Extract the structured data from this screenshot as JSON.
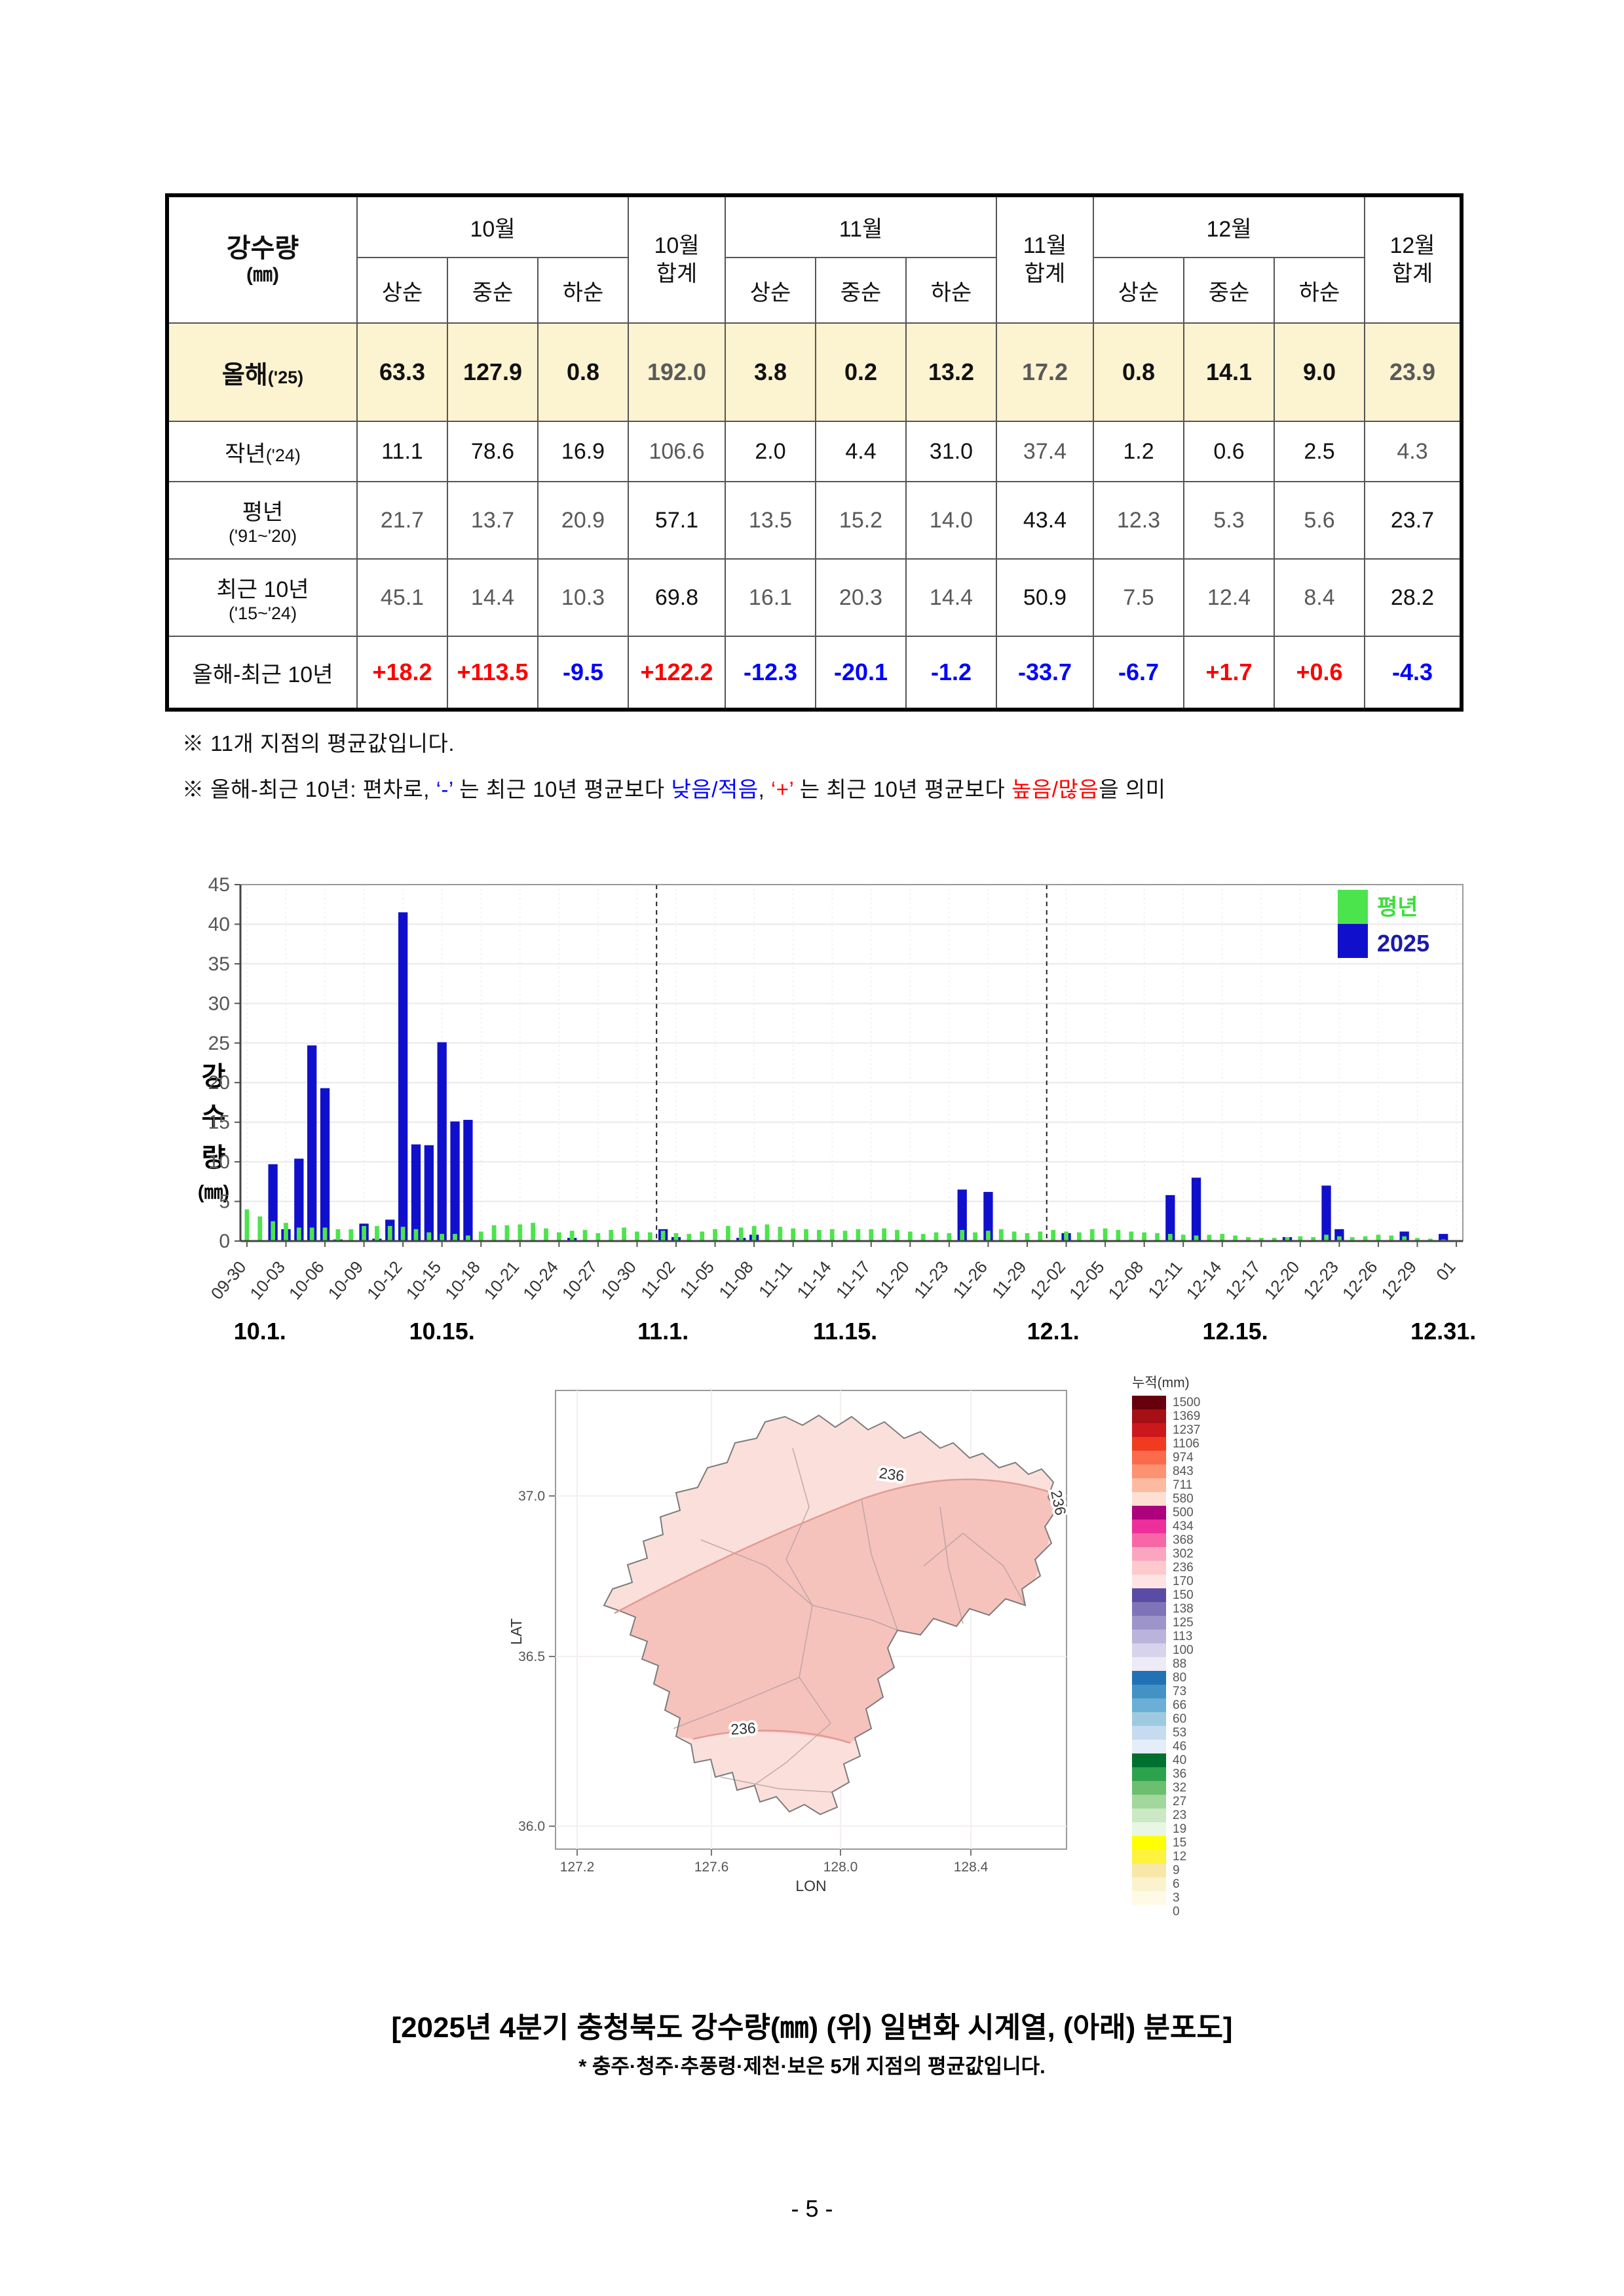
{
  "page": {
    "number": "- 5 -"
  },
  "table": {
    "title": "강수량",
    "unit": "(㎜)",
    "subcols": [
      "상순",
      "중순",
      "하순"
    ],
    "groups": [
      {
        "month": "10월",
        "sum_line1": "10월",
        "sum_line2": "합계"
      },
      {
        "month": "11월",
        "sum_line1": "11월",
        "sum_line2": "합계"
      },
      {
        "month": "12월",
        "sum_line1": "12월",
        "sum_line2": "합계"
      }
    ],
    "rows": [
      {
        "label": "올해",
        "label_sub": "('25)",
        "inline_sub": true,
        "bold_label": true,
        "bold_values": true,
        "highlight": true,
        "values": [
          "63.3",
          "127.9",
          "0.8",
          "192.0",
          "3.8",
          "0.2",
          "13.2",
          "17.2",
          "0.8",
          "14.1",
          "9.0",
          "23.9"
        ],
        "colors": [
          "k",
          "k",
          "k",
          "g",
          "k",
          "k",
          "k",
          "g",
          "k",
          "k",
          "k",
          "g"
        ]
      },
      {
        "label": "작년",
        "label_sub": "('24)",
        "inline_sub": true,
        "bold_label": false,
        "bold_values": false,
        "highlight": false,
        "values": [
          "11.1",
          "78.6",
          "16.9",
          "106.6",
          "2.0",
          "4.4",
          "31.0",
          "37.4",
          "1.2",
          "0.6",
          "2.5",
          "4.3"
        ],
        "colors": [
          "k",
          "k",
          "k",
          "g",
          "k",
          "k",
          "k",
          "g",
          "k",
          "k",
          "k",
          "g"
        ]
      },
      {
        "label": "평년",
        "label_sub": "('91~'20)",
        "inline_sub": false,
        "bold_label": false,
        "bold_values": false,
        "highlight": false,
        "values": [
          "21.7",
          "13.7",
          "20.9",
          "57.1",
          "13.5",
          "15.2",
          "14.0",
          "43.4",
          "12.3",
          "5.3",
          "5.6",
          "23.7"
        ],
        "colors": [
          "g",
          "g",
          "g",
          "k",
          "g",
          "g",
          "g",
          "k",
          "g",
          "g",
          "g",
          "k"
        ]
      },
      {
        "label": "최근 10년",
        "label_sub": "('15~'24)",
        "inline_sub": false,
        "bold_label": false,
        "bold_values": false,
        "highlight": false,
        "values": [
          "45.1",
          "14.4",
          "10.3",
          "69.8",
          "16.1",
          "20.3",
          "14.4",
          "50.9",
          "7.5",
          "12.4",
          "8.4",
          "28.2"
        ],
        "colors": [
          "g",
          "g",
          "g",
          "k",
          "g",
          "g",
          "g",
          "k",
          "g",
          "g",
          "g",
          "k"
        ]
      },
      {
        "label": "올해-최근 10년",
        "label_sub": "",
        "inline_sub": true,
        "bold_label": false,
        "bold_values": true,
        "highlight": false,
        "values": [
          "+18.2",
          "+113.5",
          "-9.5",
          "+122.2",
          "-12.3",
          "-20.1",
          "-1.2",
          "-33.7",
          "-6.7",
          "+1.7",
          "+0.6",
          "-4.3"
        ],
        "colors": [
          "r",
          "r",
          "b",
          "r",
          "b",
          "b",
          "b",
          "b",
          "b",
          "r",
          "r",
          "b"
        ]
      }
    ]
  },
  "notes": [
    {
      "parts": [
        {
          "t": "※  11개 지점의 평균값입니다.",
          "c": "k"
        }
      ]
    },
    {
      "parts": [
        {
          "t": "※  올해-최근 10년: 편차로,  ",
          "c": "k"
        },
        {
          "t": "‘-’",
          "c": "b"
        },
        {
          "t": " 는 최근 10년 평균보다 ",
          "c": "k"
        },
        {
          "t": "낮음/적음",
          "c": "b"
        },
        {
          "t": ",  ",
          "c": "k"
        },
        {
          "t": "‘+’",
          "c": "r"
        },
        {
          "t": " 는 최근 10년 평균보다 ",
          "c": "k"
        },
        {
          "t": "높음/많음",
          "c": "r"
        },
        {
          "t": "을 의미",
          "c": "k"
        }
      ]
    }
  ],
  "chart_data": {
    "type": "bar",
    "title": "",
    "ylabel_chars": [
      "강",
      "수",
      "량"
    ],
    "ylabel_unit": "(㎜)",
    "ylim": [
      0,
      45
    ],
    "ytick_step": 5,
    "grid": true,
    "legend_position": "top-right",
    "x_tick_every": 3,
    "month_boundaries": [
      "11-01",
      "12-01"
    ],
    "month_labels": [
      {
        "text": "10.1.",
        "i": 1
      },
      {
        "text": "10.15.",
        "i": 15
      },
      {
        "text": "11.1.",
        "i": 32
      },
      {
        "text": "11.15.",
        "i": 46
      },
      {
        "text": "12.1.",
        "i": 62
      },
      {
        "text": "12.15.",
        "i": 76
      },
      {
        "text": "12.31.",
        "i": 92
      }
    ],
    "x": [
      "09-30",
      "10-01",
      "10-02",
      "10-03",
      "10-04",
      "10-05",
      "10-06",
      "10-07",
      "10-08",
      "10-09",
      "10-10",
      "10-11",
      "10-12",
      "10-13",
      "10-14",
      "10-15",
      "10-16",
      "10-17",
      "10-18",
      "10-19",
      "10-20",
      "10-21",
      "10-22",
      "10-23",
      "10-24",
      "10-25",
      "10-26",
      "10-27",
      "10-28",
      "10-29",
      "10-30",
      "10-31",
      "11-01",
      "11-02",
      "11-03",
      "11-04",
      "11-05",
      "11-06",
      "11-07",
      "11-08",
      "11-09",
      "11-10",
      "11-11",
      "11-12",
      "11-13",
      "11-14",
      "11-15",
      "11-16",
      "11-17",
      "11-18",
      "11-19",
      "11-20",
      "11-21",
      "11-22",
      "11-23",
      "11-24",
      "11-25",
      "11-26",
      "11-27",
      "11-28",
      "11-29",
      "11-30",
      "12-01",
      "12-02",
      "12-03",
      "12-04",
      "12-05",
      "12-06",
      "12-07",
      "12-08",
      "12-09",
      "12-10",
      "12-11",
      "12-12",
      "12-13",
      "12-14",
      "12-15",
      "12-16",
      "12-17",
      "12-18",
      "12-19",
      "12-20",
      "12-21",
      "12-22",
      "12-23",
      "12-24",
      "12-25",
      "12-26",
      "12-27",
      "12-28",
      "12-29",
      "12-30",
      "12-31",
      "01"
    ],
    "series": [
      {
        "name": "평년",
        "color": "#4ce44c",
        "label_color": "#3ddd3d",
        "values": [
          4.0,
          3.1,
          2.5,
          2.3,
          1.7,
          1.7,
          1.7,
          1.5,
          1.5,
          1.9,
          1.9,
          1.9,
          1.8,
          1.5,
          1.1,
          0.9,
          0.9,
          0.7,
          1.2,
          2.0,
          2.0,
          2.1,
          2.3,
          1.6,
          1.1,
          1.3,
          1.4,
          1.0,
          1.4,
          1.7,
          1.2,
          1.1,
          1.3,
          1.0,
          0.9,
          1.2,
          1.5,
          1.9,
          1.7,
          1.9,
          2.1,
          1.8,
          1.6,
          1.5,
          1.4,
          1.5,
          1.3,
          1.5,
          1.5,
          1.6,
          1.4,
          1.2,
          0.9,
          1.1,
          1.0,
          1.4,
          1.1,
          1.3,
          1.5,
          1.2,
          1.0,
          1.2,
          1.4,
          1.2,
          1.1,
          1.5,
          1.6,
          1.4,
          1.2,
          1.1,
          1.0,
          0.9,
          0.8,
          0.7,
          0.8,
          0.9,
          0.7,
          0.5,
          0.4,
          0.4,
          0.5,
          0.6,
          0.5,
          0.8,
          0.6,
          0.5,
          0.6,
          0.8,
          0.7,
          0.6,
          0.4,
          0.3,
          0.2,
          0.1
        ]
      },
      {
        "name": "2025",
        "color": "#1010cc",
        "label_color": "#1a1aad",
        "values": [
          0,
          0,
          9.7,
          1.5,
          10.4,
          24.7,
          19.3,
          0.2,
          0,
          2.2,
          0.3,
          2.7,
          41.5,
          12.2,
          12.1,
          25.1,
          15.1,
          15.3,
          0,
          0,
          0,
          0,
          0,
          0,
          0,
          0.4,
          0,
          0,
          0,
          0,
          0,
          0,
          1.5,
          0.5,
          0,
          0,
          0,
          0,
          0.4,
          0.8,
          0,
          0,
          0,
          0,
          0,
          0,
          0.1,
          0,
          0,
          0,
          0,
          0,
          0,
          0,
          0,
          6.5,
          0,
          6.2,
          0,
          0,
          0,
          0,
          0,
          1.0,
          0,
          0,
          0,
          0,
          0,
          0,
          0,
          5.8,
          0,
          8.0,
          0,
          0,
          0,
          0,
          0,
          0,
          0.5,
          0,
          0,
          7.0,
          1.5,
          0,
          0,
          0,
          0,
          1.2,
          0,
          0,
          0.9,
          0
        ]
      }
    ]
  },
  "map": {
    "legend_title": "누적(mm)",
    "lon_label": "LON",
    "lat_label": "LAT",
    "lon_ticks": [
      "127.2",
      "127.6",
      "128.0",
      "128.4"
    ],
    "lat_ticks": [
      "37.0",
      "36.5",
      "36.0"
    ],
    "contour_labels": [
      "236",
      "236",
      "236"
    ],
    "legend": [
      {
        "v": "1500",
        "c": "#67000d"
      },
      {
        "v": "1369",
        "c": "#a50f15"
      },
      {
        "v": "1237",
        "c": "#cb181d"
      },
      {
        "v": "1106",
        "c": "#f03b20"
      },
      {
        "v": "974",
        "c": "#fb6a4a"
      },
      {
        "v": "843",
        "c": "#fc9272"
      },
      {
        "v": "711",
        "c": "#fcbba1"
      },
      {
        "v": "580",
        "c": "#fee0d2"
      },
      {
        "v": "500",
        "c": "#ae017e"
      },
      {
        "v": "434",
        "c": "#ec2f9a"
      },
      {
        "v": "368",
        "c": "#f767a6"
      },
      {
        "v": "302",
        "c": "#fba6c0"
      },
      {
        "v": "236",
        "c": "#fcc9cd"
      },
      {
        "v": "170",
        "c": "#fde3e3"
      },
      {
        "v": "150",
        "c": "#5a4ba5"
      },
      {
        "v": "138",
        "c": "#7f74b8"
      },
      {
        "v": "125",
        "c": "#9d94cb"
      },
      {
        "v": "113",
        "c": "#bab4da"
      },
      {
        "v": "100",
        "c": "#d6d3ea"
      },
      {
        "v": "88",
        "c": "#edebf6"
      },
      {
        "v": "80",
        "c": "#2171b5"
      },
      {
        "v": "73",
        "c": "#4292c6"
      },
      {
        "v": "66",
        "c": "#6baed6"
      },
      {
        "v": "60",
        "c": "#9ecae1"
      },
      {
        "v": "53",
        "c": "#c6dbef"
      },
      {
        "v": "46",
        "c": "#e3eef8"
      },
      {
        "v": "40",
        "c": "#00702e"
      },
      {
        "v": "36",
        "c": "#2ca24c"
      },
      {
        "v": "32",
        "c": "#6bbf6e"
      },
      {
        "v": "27",
        "c": "#a2d89b"
      },
      {
        "v": "23",
        "c": "#cbe9c4"
      },
      {
        "v": "19",
        "c": "#e8f6e4"
      },
      {
        "v": "15",
        "c": "#ffff00"
      },
      {
        "v": "12",
        "c": "#fdf23c"
      },
      {
        "v": "9",
        "c": "#f7e8a9"
      },
      {
        "v": "6",
        "c": "#fbf3cd"
      },
      {
        "v": "3",
        "c": "#fefae6"
      },
      {
        "v": "0",
        "c": "#ffffff"
      }
    ]
  },
  "caption": {
    "line1": "[2025년 4분기 충청북도 강수량(㎜) (위) 일변화 시계열, (아래) 분포도]",
    "line2": "* 충주·청주·추풍령·제천·보은 5개 지점의 평균값입니다."
  }
}
